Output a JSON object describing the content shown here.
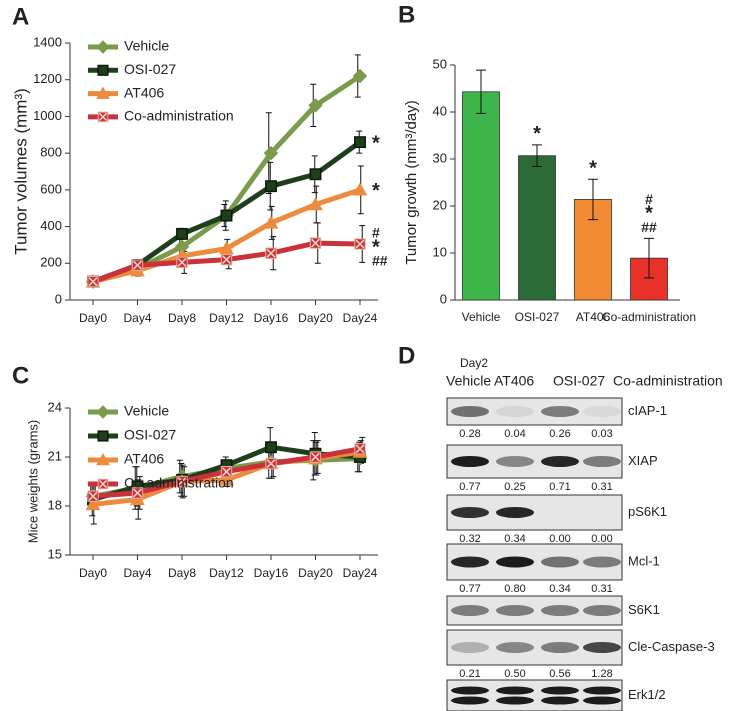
{
  "chart_data": [
    {
      "type": "line",
      "panel": "A",
      "y_label": "Tumor volumes (mm³)",
      "categories": [
        "Day0",
        "Day4",
        "Day8",
        "Day12",
        "Day16",
        "Day20",
        "Day24"
      ],
      "ylim": [
        0,
        1400
      ],
      "yticks": [
        0,
        200,
        400,
        600,
        800,
        1000,
        1200,
        1400
      ],
      "series": [
        {
          "name": "Vehicle",
          "color": "#7b9a4c",
          "marker": "diamond",
          "values": [
            100,
            170,
            290,
            460,
            800,
            1060,
            1220
          ],
          "errors": [
            10,
            30,
            50,
            60,
            220,
            115,
            115
          ]
        },
        {
          "name": "OSI-027",
          "color": "#1f3f1c",
          "marker": "square",
          "values": [
            100,
            190,
            360,
            460,
            620,
            685,
            860
          ],
          "errors": [
            10,
            30,
            30,
            80,
            130,
            100,
            60
          ],
          "annotation": [
            "*"
          ]
        },
        {
          "name": "AT406",
          "color": "#ec8b3e",
          "marker": "triangle",
          "values": [
            100,
            160,
            240,
            280,
            420,
            520,
            600
          ],
          "errors": [
            10,
            30,
            40,
            50,
            90,
            100,
            130
          ],
          "annotation": [
            "*"
          ]
        },
        {
          "name": "Co-administration",
          "color": "#c9323b",
          "marker": "cross",
          "values": [
            100,
            190,
            205,
            220,
            255,
            310,
            305
          ],
          "errors": [
            10,
            30,
            60,
            50,
            90,
            110,
            100
          ],
          "annotation": [
            "#",
            "*",
            "##"
          ]
        }
      ]
    },
    {
      "type": "bar",
      "panel": "B",
      "y_label": "Tumor growth (mm³/day)",
      "categories": [
        "Vehicle",
        "OSI-027",
        "AT406",
        "Co-administration"
      ],
      "values": [
        44.3,
        30.7,
        21.4,
        8.9
      ],
      "errors": [
        4.6,
        2.3,
        4.3,
        4.2
      ],
      "colors": [
        "#3db54a",
        "#2b6b38",
        "#f18a32",
        "#e83129"
      ],
      "annotations": [
        null,
        [
          "*"
        ],
        [
          "*"
        ],
        [
          "#",
          "*",
          "##"
        ]
      ],
      "ylim": [
        0,
        50
      ],
      "yticks": [
        0,
        10,
        20,
        30,
        40,
        50
      ]
    },
    {
      "type": "line",
      "panel": "C",
      "y_label": "Mice weights (grams)",
      "categories": [
        "Day0",
        "Day4",
        "Day8",
        "Day12",
        "Day16",
        "Day20",
        "Day24"
      ],
      "ylim": [
        15,
        24
      ],
      "yticks": [
        15,
        18,
        21,
        24
      ],
      "series": [
        {
          "name": "Vehicle",
          "color": "#7b9a4c",
          "marker": "diamond",
          "values": [
            18.6,
            19.1,
            19.8,
            20.3,
            20.7,
            20.8,
            20.9
          ],
          "errors": [
            0.8,
            1.3,
            1.0,
            0.5,
            1.0,
            1.2,
            0.8
          ]
        },
        {
          "name": "OSI-027",
          "color": "#1f3f1c",
          "marker": "square",
          "values": [
            18.4,
            19.2,
            19.6,
            20.5,
            21.6,
            21.2,
            21.0
          ],
          "errors": [
            1.0,
            1.2,
            1.0,
            0.5,
            1.2,
            1.3,
            0.9
          ]
        },
        {
          "name": "AT406",
          "color": "#ec8b3e",
          "marker": "triangle",
          "values": [
            18.1,
            18.4,
            19.5,
            19.6,
            20.6,
            20.9,
            21.3
          ],
          "errors": [
            1.2,
            1.2,
            1.0,
            0.4,
            0.9,
            1.0,
            0.7
          ]
        },
        {
          "name": "Co-administration",
          "color": "#c9323b",
          "marker": "cross",
          "values": [
            18.6,
            18.8,
            19.5,
            20.1,
            20.6,
            21.0,
            21.5
          ],
          "errors": [
            0.7,
            1.0,
            0.9,
            0.5,
            0.8,
            1.0,
            0.7
          ]
        }
      ]
    }
  ],
  "blot": {
    "panel": "D",
    "timepoint": "Day2",
    "lanes": [
      "Vehicle",
      "AT406",
      "OSI-027",
      "Co-administration"
    ],
    "rows": [
      {
        "label": "cIAP-1",
        "quantification": [
          "0.28",
          "0.04",
          "0.26",
          "0.03"
        ]
      },
      {
        "label": "XIAP",
        "quantification": [
          "0.77",
          "0.25",
          "0.71",
          "0.31"
        ]
      },
      {
        "label": "pS6K1",
        "quantification": [
          "0.32",
          "0.34",
          "0.00",
          "0.00"
        ]
      },
      {
        "label": "Mcl-1",
        "quantification": [
          "0.77",
          "0.80",
          "0.34",
          "0.31"
        ]
      },
      {
        "label": "S6K1"
      },
      {
        "label": "Cle-Caspase-3",
        "quantification": [
          "0.21",
          "0.50",
          "0.56",
          "1.28"
        ]
      },
      {
        "label": "Erk1/2"
      }
    ]
  }
}
